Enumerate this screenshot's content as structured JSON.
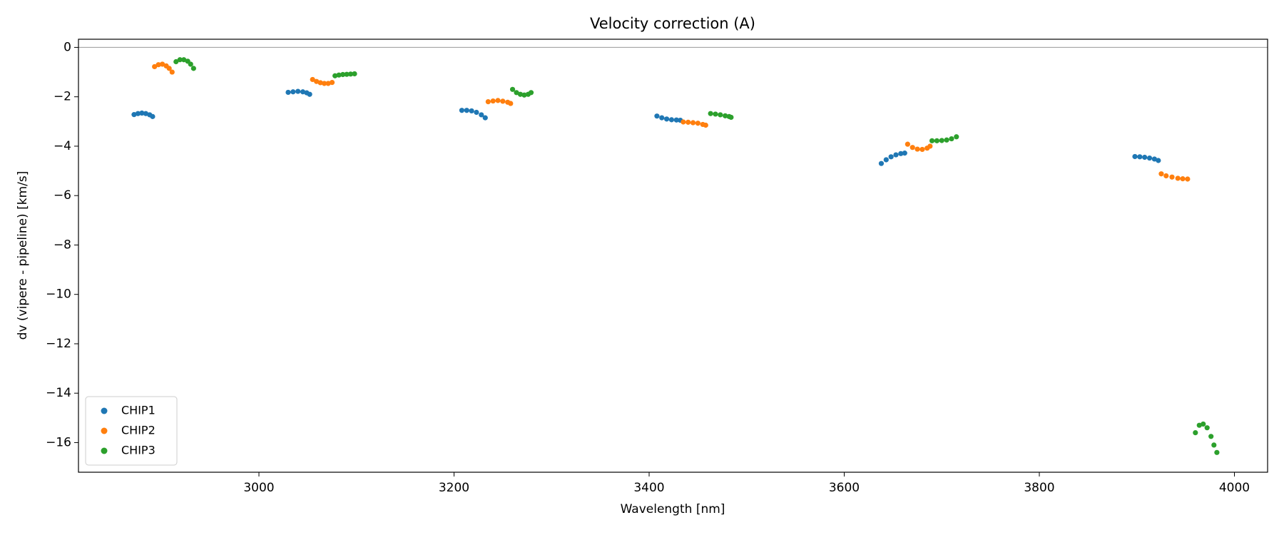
{
  "chart_data": {
    "type": "scatter",
    "title": "Velocity correction (A)",
    "x_label": "Wavelength [nm]",
    "y_label": "dv (vipere - pipeline) [km/s]",
    "xlim": [
      2815,
      4034
    ],
    "ylim": [
      -17.2,
      0.33
    ],
    "xticks": [
      3000,
      3200,
      3400,
      3600,
      3800,
      4000
    ],
    "yticks": [
      0,
      {
        "value": -2,
        "label": "−2"
      },
      {
        "value": -4,
        "label": "−4"
      },
      {
        "value": -6,
        "label": "−6"
      },
      {
        "value": -8,
        "label": "−8"
      },
      {
        "value": -10,
        "label": "−10"
      },
      {
        "value": -12,
        "label": "−12"
      },
      {
        "value": -14,
        "label": "−14"
      },
      {
        "value": -16,
        "label": "−16"
      }
    ],
    "axhline": 0,
    "legend": "lower left",
    "series": [
      {
        "name": "CHIP1",
        "color": "#1f77b4",
        "x": [
          2872,
          2876,
          2880,
          2884,
          2888,
          2891,
          3030,
          3035,
          3040,
          3045,
          3049,
          3052,
          3208,
          3213,
          3218,
          3223,
          3228,
          3232,
          3408,
          3413,
          3418,
          3423,
          3428,
          3432,
          3638,
          3643,
          3648,
          3653,
          3658,
          3662,
          3898,
          3903,
          3908,
          3913,
          3918,
          3922
        ],
        "values": [
          -2.72,
          -2.68,
          -2.66,
          -2.68,
          -2.73,
          -2.8,
          -1.82,
          -1.8,
          -1.78,
          -1.8,
          -1.84,
          -1.9,
          -2.55,
          -2.55,
          -2.57,
          -2.63,
          -2.73,
          -2.85,
          -2.78,
          -2.85,
          -2.9,
          -2.93,
          -2.94,
          -2.95,
          -4.7,
          -4.55,
          -4.43,
          -4.35,
          -4.3,
          -4.28,
          -4.42,
          -4.43,
          -4.45,
          -4.48,
          -4.52,
          -4.58
        ]
      },
      {
        "name": "CHIP2",
        "color": "#ff7f0e",
        "x": [
          2893,
          2897,
          2901,
          2905,
          2908,
          2911,
          3055,
          3059,
          3063,
          3067,
          3071,
          3075,
          3235,
          3240,
          3245,
          3250,
          3255,
          3258,
          3435,
          3440,
          3445,
          3450,
          3455,
          3458,
          3665,
          3670,
          3675,
          3680,
          3685,
          3688,
          3925,
          3930,
          3936,
          3942,
          3947,
          3952
        ],
        "values": [
          -0.78,
          -0.7,
          -0.68,
          -0.75,
          -0.85,
          -1.0,
          -1.3,
          -1.38,
          -1.43,
          -1.46,
          -1.46,
          -1.42,
          -2.2,
          -2.17,
          -2.15,
          -2.18,
          -2.22,
          -2.27,
          -3.02,
          -3.03,
          -3.05,
          -3.07,
          -3.12,
          -3.15,
          -3.92,
          -4.05,
          -4.12,
          -4.13,
          -4.08,
          -4.0,
          -5.12,
          -5.2,
          -5.25,
          -5.3,
          -5.32,
          -5.33
        ]
      },
      {
        "name": "CHIP3",
        "color": "#2ca02c",
        "x": [
          2915,
          2919,
          2923,
          2927,
          2930,
          2933,
          3078,
          3082,
          3086,
          3090,
          3094,
          3098,
          3260,
          3264,
          3268,
          3272,
          3276,
          3279,
          3463,
          3468,
          3473,
          3478,
          3482,
          3484,
          3690,
          3695,
          3700,
          3705,
          3710,
          3715,
          3960,
          3964,
          3968,
          3972,
          3976,
          3979,
          3982
        ],
        "values": [
          -0.58,
          -0.5,
          -0.5,
          -0.56,
          -0.68,
          -0.85,
          -1.15,
          -1.12,
          -1.1,
          -1.09,
          -1.08,
          -1.07,
          -1.7,
          -1.83,
          -1.9,
          -1.93,
          -1.9,
          -1.83,
          -2.68,
          -2.7,
          -2.73,
          -2.77,
          -2.8,
          -2.83,
          -3.78,
          -3.78,
          -3.77,
          -3.75,
          -3.7,
          -3.62,
          -15.6,
          -15.3,
          -15.25,
          -15.4,
          -15.75,
          -16.1,
          -16.4
        ]
      }
    ]
  }
}
